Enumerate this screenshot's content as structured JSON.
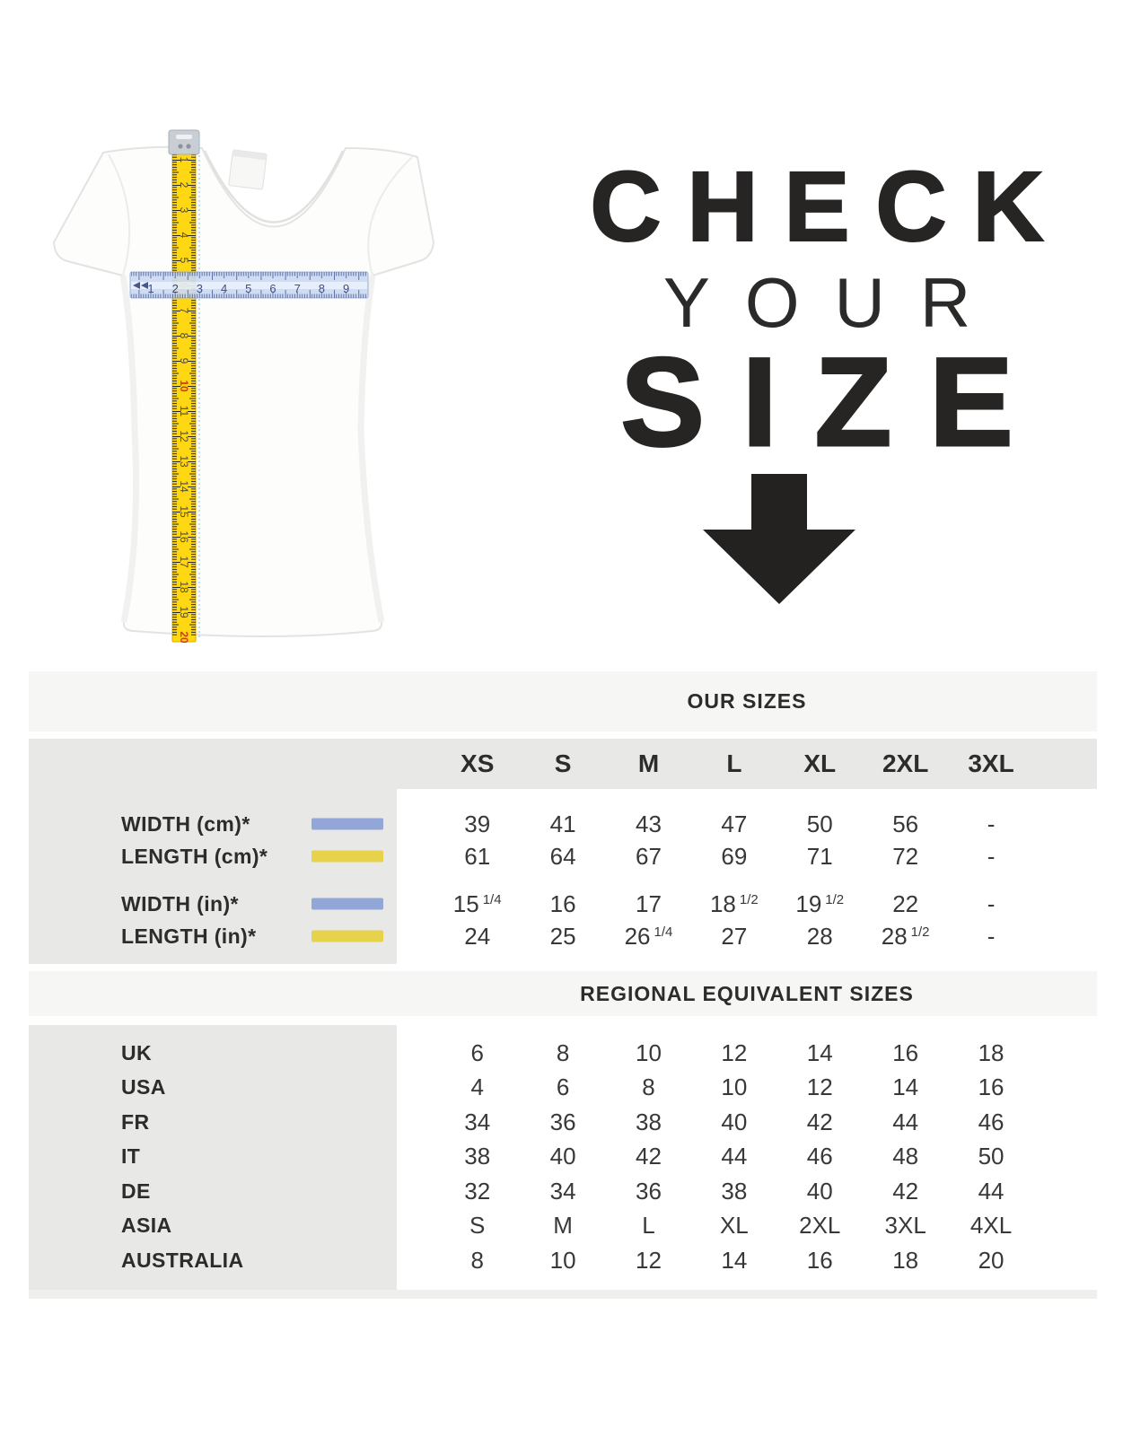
{
  "hero": {
    "line1": "CHECK",
    "line2": "YOUR",
    "line3": "SIZE"
  },
  "illustration": {
    "vertical_tape_numbers": [
      "1",
      "2",
      "3",
      "4",
      "5",
      "6",
      "7",
      "8",
      "9",
      "10",
      "11",
      "12",
      "13",
      "14",
      "15",
      "16",
      "17",
      "18",
      "19",
      "20"
    ],
    "vertical_tape_red_numbers": [
      "10",
      "20"
    ],
    "horizontal_tape_numbers": [
      "1",
      "2",
      "3",
      "4",
      "5",
      "6",
      "7",
      "8",
      "9"
    ],
    "vertical_tape_color": "#ffd712",
    "horizontal_tape_color": "#ccdaf4"
  },
  "table": {
    "our_sizes_title": "OUR SIZES",
    "size_columns": [
      "XS",
      "S",
      "M",
      "L",
      "XL",
      "2XL",
      "3XL"
    ],
    "measurement_rows": [
      {
        "label": "WIDTH (cm)*",
        "swatch": "blue",
        "values": [
          "39",
          "41",
          "43",
          "47",
          "50",
          "56",
          "-"
        ]
      },
      {
        "label": "LENGTH (cm)*",
        "swatch": "yellow",
        "values": [
          "61",
          "64",
          "67",
          "69",
          "71",
          "72",
          "-"
        ]
      },
      {
        "label": "WIDTH (in)*",
        "swatch": "blue",
        "values": [
          "15 1/4",
          "16",
          "17",
          "18 1/2",
          "19 1/2",
          "22",
          "-"
        ],
        "new_group": true
      },
      {
        "label": "LENGTH (in)*",
        "swatch": "yellow",
        "values": [
          "24",
          "25",
          "26 1/4",
          "27",
          "28",
          "28 1/2",
          "-"
        ]
      }
    ],
    "regional_title": "REGIONAL EQUIVALENT SIZES",
    "regional_rows": [
      {
        "label": "UK",
        "values": [
          "6",
          "8",
          "10",
          "12",
          "14",
          "16",
          "18"
        ]
      },
      {
        "label": "USA",
        "values": [
          "4",
          "6",
          "8",
          "10",
          "12",
          "14",
          "16"
        ]
      },
      {
        "label": "FR",
        "values": [
          "34",
          "36",
          "38",
          "40",
          "42",
          "44",
          "46"
        ]
      },
      {
        "label": "IT",
        "values": [
          "38",
          "40",
          "42",
          "44",
          "46",
          "48",
          "50"
        ]
      },
      {
        "label": "DE",
        "values": [
          "32",
          "34",
          "36",
          "38",
          "40",
          "42",
          "44"
        ]
      },
      {
        "label": "ASIA",
        "values": [
          "S",
          "M",
          "L",
          "XL",
          "2XL",
          "3XL",
          "4XL"
        ]
      },
      {
        "label": "AUSTRALIA",
        "values": [
          "8",
          "10",
          "12",
          "14",
          "16",
          "18",
          "20"
        ]
      }
    ]
  },
  "colors": {
    "blue_accent": "#92a6d7",
    "yellow_accent": "#e6d24b",
    "header_band": "#f6f6f4",
    "gray_band": "#e8e8e6",
    "text_dark": "#2d2c2b",
    "arrow": "#232221"
  }
}
